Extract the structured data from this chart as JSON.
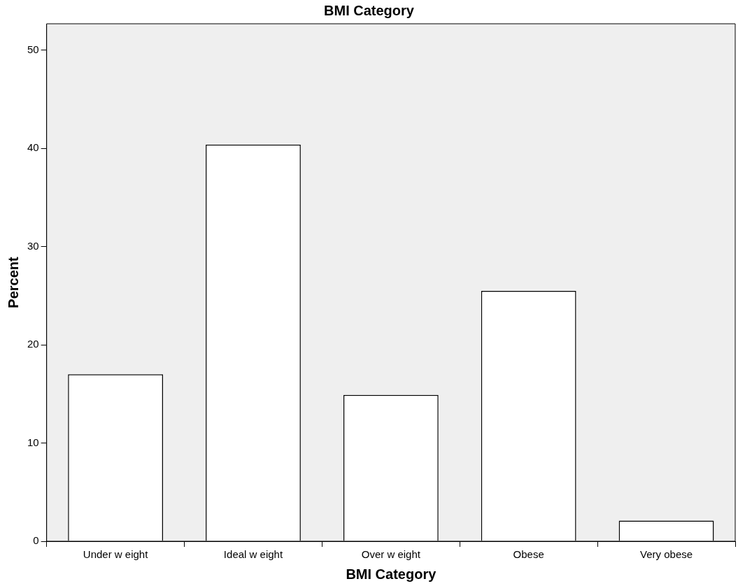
{
  "chart_data": {
    "type": "bar",
    "title": "BMI Category",
    "xlabel": "BMI Category",
    "ylabel": "Percent",
    "categories": [
      "Under w eight",
      "Ideal w eight",
      "Over w eight",
      "Obese",
      "Very obese"
    ],
    "values": [
      17.0,
      40.4,
      14.9,
      25.5,
      2.1
    ],
    "color": "#ffffff",
    "ylim": [
      0,
      52.7
    ],
    "yticks": [
      0,
      10,
      20,
      30,
      40,
      50
    ],
    "grid": false,
    "legend": false
  }
}
